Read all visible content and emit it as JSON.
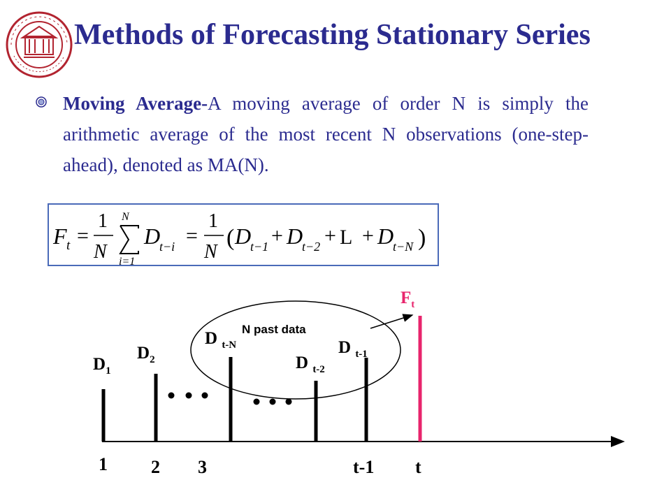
{
  "header": {
    "logo": "university-seal-icon",
    "title": "Methods of Forecasting Stationary Series"
  },
  "bullet": {
    "icon": "bullet-disc-icon",
    "term": "Moving Average",
    "separator": "-",
    "text": "A moving average of order N is simply the arithmetic average of the most recent N observations (one-step-ahead), denoted as MA(N)."
  },
  "formula": {
    "lhs": "F",
    "lhs_sub": "t",
    "frac_num": "1",
    "frac_den": "N",
    "sum_upper": "N",
    "sum_lower": "i=1",
    "term": "D",
    "term_sub": "t−i",
    "d1_sub": "t−1",
    "d2_sub": "t−2",
    "ellipsis": "L",
    "dn_sub": "t−N"
  },
  "diagram": {
    "colors": {
      "bar": "#000000",
      "forecast_bar": "#e8246c",
      "title": "#2b2b8f"
    },
    "forecast_label": {
      "main": "F",
      "sub": "t"
    },
    "past_data_label": "N past data",
    "data_labels": [
      {
        "main": "D",
        "sub": "1"
      },
      {
        "main": "D",
        "sub": "2"
      },
      {
        "main": "D ",
        "sub": "t-N"
      },
      {
        "main": "D ",
        "sub": "t-2"
      },
      {
        "main": "D ",
        "sub": "t-1"
      }
    ],
    "axis_labels": [
      "1",
      "2",
      "3",
      "t-1",
      "t"
    ]
  }
}
